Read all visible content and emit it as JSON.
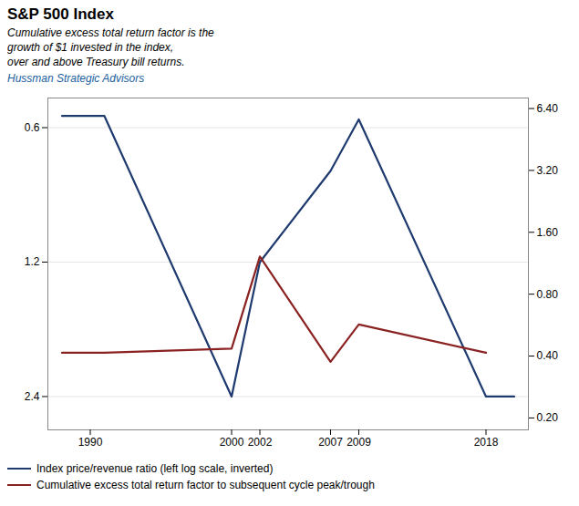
{
  "chart_data": {
    "type": "line",
    "title": "S&P 500 Index",
    "subtitle": "Cumulative excess total return factor is the\ngrowth of $1 invested in the index,\nover and above Treasury bill returns.",
    "annotations": [
      {
        "text": "Hussman Strategic Advisors",
        "color": "#2060a0"
      }
    ],
    "series": [
      {
        "name": "Index price/revenue ratio (left log scale, inverted)",
        "color": "#1e3a6e",
        "x": [
          1988,
          1991,
          2000,
          2002,
          2007,
          2009,
          2018,
          2020
        ],
        "values": [
          0.565,
          0.565,
          2.4,
          1.2,
          0.75,
          0.575,
          2.4,
          2.4
        ]
      },
      {
        "name": "Cumulative excess total return factor to subsequent cycle peak/trough",
        "color": "#8b2222",
        "axis": "y2",
        "x": [
          1988,
          1991,
          2000,
          2002,
          2007,
          2009,
          2018
        ],
        "values": [
          0.415,
          0.415,
          0.435,
          1.22,
          0.375,
          0.57,
          0.415
        ]
      }
    ],
    "xlim": [
      1987,
      2021
    ],
    "xticks": [
      1990,
      2000,
      2002,
      2007,
      2009,
      2018
    ],
    "ylim": [
      2.85,
      0.515
    ],
    "yticks": [
      0.6,
      1.2,
      2.4
    ],
    "y2lim": [
      0.175,
      7.2
    ],
    "y2ticks": [
      {
        "value": 6.4,
        "label": "6.40"
      },
      {
        "value": 3.2,
        "label": "3.20"
      },
      {
        "value": 1.6,
        "label": "1.60"
      },
      {
        "value": 0.8,
        "label": "0.80"
      },
      {
        "value": 0.4,
        "label": "0.40"
      },
      {
        "value": 0.2,
        "label": "0.20"
      }
    ],
    "log": "y",
    "grid": true,
    "legend": "bottom"
  }
}
